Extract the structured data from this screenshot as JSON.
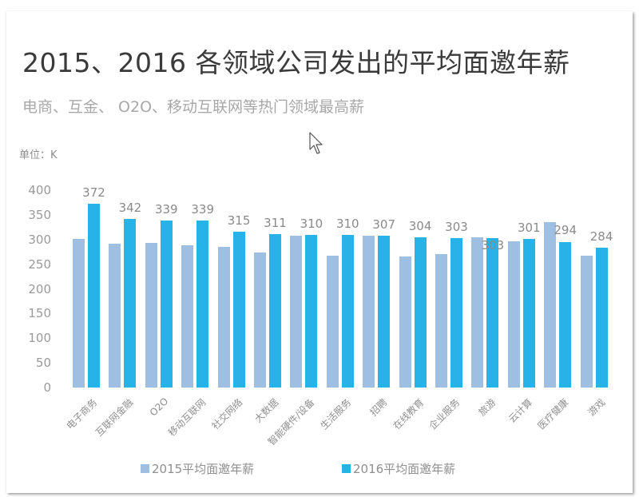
{
  "title": "2015、2016 各领域公司发出的平均面邀年薪",
  "subtitle": "电商、互金、 O2O、移动互联网等热门领域最高薪",
  "unit_label": "单位：K",
  "legend": [
    {
      "label": "2015平均面邀年薪",
      "color": "#9fbfe2"
    },
    {
      "label": "2016平均面邀年薪",
      "color": "#27b2e8"
    }
  ],
  "yticks": [
    "400",
    "350",
    "300",
    "250",
    "200",
    "150",
    "100",
    "50",
    "0"
  ],
  "chart_data": {
    "type": "bar",
    "title": "2015、2016 各领域公司发出的平均面邀年薪",
    "subtitle": "电商、互金、 O2O、移动互联网等热门领域最高薪",
    "xlabel": "",
    "ylabel": "单位：K",
    "ylim": [
      0,
      400
    ],
    "yticks": [
      0,
      50,
      100,
      150,
      200,
      250,
      300,
      350,
      400
    ],
    "grid": false,
    "legend_position": "bottom",
    "categories": [
      "电子商务",
      "互联网金融",
      "O2O",
      "移动互联网",
      "社交网络",
      "大数据",
      "智能硬件/设备",
      "生活服务",
      "招聘",
      "在线教育",
      "企业服务",
      "旅游",
      "云计算",
      "医疗健康",
      "游戏"
    ],
    "series": [
      {
        "name": "2015平均面邀年薪",
        "color": "#9fbfe2",
        "values": [
          301,
          291,
          293,
          289,
          285,
          274,
          307,
          267,
          307,
          265,
          271,
          305,
          297,
          335,
          267
        ]
      },
      {
        "name": "2016平均面邀年薪",
        "color": "#27b2e8",
        "values": [
          372,
          342,
          339,
          339,
          315,
          311,
          310,
          310,
          307,
          304,
          303,
          303,
          301,
          294,
          284
        ]
      }
    ],
    "data_labels": {
      "series": "2016平均面邀年薪",
      "values": [
        "372",
        "342",
        "339",
        "339",
        "315",
        "311",
        "310",
        "310",
        "307",
        "304",
        "303",
        "303",
        "301",
        "294",
        "284"
      ]
    }
  }
}
